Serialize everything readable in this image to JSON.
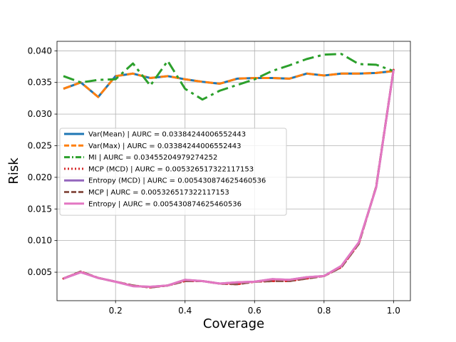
{
  "chart_data": {
    "type": "line",
    "xlabel": "Coverage",
    "ylabel": "Risk",
    "xlim": [
      0.0315,
      1.0485
    ],
    "ylim": [
      0.0005,
      0.0415
    ],
    "xticks": [
      0.2,
      0.4,
      0.6,
      0.8,
      1.0
    ],
    "xtick_labels": [
      "0.2",
      "0.4",
      "0.6",
      "0.8",
      "1.0"
    ],
    "yticks": [
      0.005,
      0.01,
      0.015,
      0.02,
      0.025,
      0.03,
      0.035,
      0.04
    ],
    "ytick_labels": [
      "0.005",
      "0.010",
      "0.015",
      "0.020",
      "0.025",
      "0.030",
      "0.035",
      "0.040"
    ],
    "grid": true,
    "legend_position": "center-left",
    "x": [
      0.05,
      0.1,
      0.15,
      0.2,
      0.25,
      0.3,
      0.35,
      0.4,
      0.45,
      0.5,
      0.55,
      0.6,
      0.65,
      0.7,
      0.75,
      0.8,
      0.85,
      0.9,
      0.95,
      1.0
    ],
    "series": [
      {
        "name": "Var(Mean) | AURC = 0.03384244006552443",
        "color": "#1f77b4",
        "dash": "solid",
        "values": [
          0.034,
          0.035,
          0.0327,
          0.036,
          0.0364,
          0.0357,
          0.036,
          0.0355,
          0.0351,
          0.0348,
          0.0356,
          0.0357,
          0.0357,
          0.0356,
          0.0364,
          0.0361,
          0.0364,
          0.0364,
          0.0365,
          0.0368
        ]
      },
      {
        "name": "Var(Max) | AURC = 0.03384244006552443",
        "color": "#ff7f0e",
        "dash": "dashed",
        "values": [
          0.034,
          0.035,
          0.0327,
          0.036,
          0.0364,
          0.0357,
          0.036,
          0.0355,
          0.0351,
          0.0348,
          0.0356,
          0.0357,
          0.0357,
          0.0356,
          0.0364,
          0.0361,
          0.0364,
          0.0364,
          0.0365,
          0.0368
        ]
      },
      {
        "name": "MI | AURC = 0.03455204979274252",
        "color": "#2ca02c",
        "dash": "dashdot",
        "values": [
          0.036,
          0.035,
          0.0354,
          0.0355,
          0.038,
          0.0345,
          0.0384,
          0.034,
          0.0323,
          0.0337,
          0.0346,
          0.0355,
          0.0368,
          0.0377,
          0.0387,
          0.0394,
          0.0395,
          0.0379,
          0.0378,
          0.0368
        ]
      },
      {
        "name": "MCP (MCD) | AURC = 0.005326517322117153",
        "color": "#d62728",
        "dash": "dotted",
        "values": [
          0.004,
          0.0051,
          0.0041,
          0.0035,
          0.0029,
          0.0026,
          0.0029,
          0.0036,
          0.0036,
          0.0032,
          0.0031,
          0.0035,
          0.0036,
          0.0036,
          0.004,
          0.0044,
          0.0058,
          0.0095,
          0.0185,
          0.037
        ]
      },
      {
        "name": "Entropy (MCD) | AURC = 0.005430874625460536",
        "color": "#9467bd",
        "dash": "solid",
        "values": [
          0.004,
          0.005,
          0.0041,
          0.0035,
          0.0028,
          0.0027,
          0.0029,
          0.0038,
          0.0036,
          0.0032,
          0.0034,
          0.0035,
          0.0039,
          0.0038,
          0.0042,
          0.0044,
          0.006,
          0.0097,
          0.0184,
          0.037
        ]
      },
      {
        "name": "MCP | AURC = 0.005326517322117153",
        "color": "#8c564b",
        "dash": "dashed",
        "values": [
          0.004,
          0.0051,
          0.0041,
          0.0035,
          0.0029,
          0.0026,
          0.0029,
          0.0036,
          0.0036,
          0.0032,
          0.0031,
          0.0035,
          0.0036,
          0.0036,
          0.004,
          0.0044,
          0.0058,
          0.0095,
          0.0185,
          0.037
        ]
      },
      {
        "name": "Entropy | AURC = 0.005430874625460536",
        "color": "#e377c2",
        "dash": "solid",
        "values": [
          0.004,
          0.005,
          0.0041,
          0.0035,
          0.0028,
          0.0027,
          0.0029,
          0.0038,
          0.0036,
          0.0032,
          0.0034,
          0.0035,
          0.0039,
          0.0038,
          0.0042,
          0.0044,
          0.006,
          0.0097,
          0.0184,
          0.037
        ]
      }
    ]
  }
}
